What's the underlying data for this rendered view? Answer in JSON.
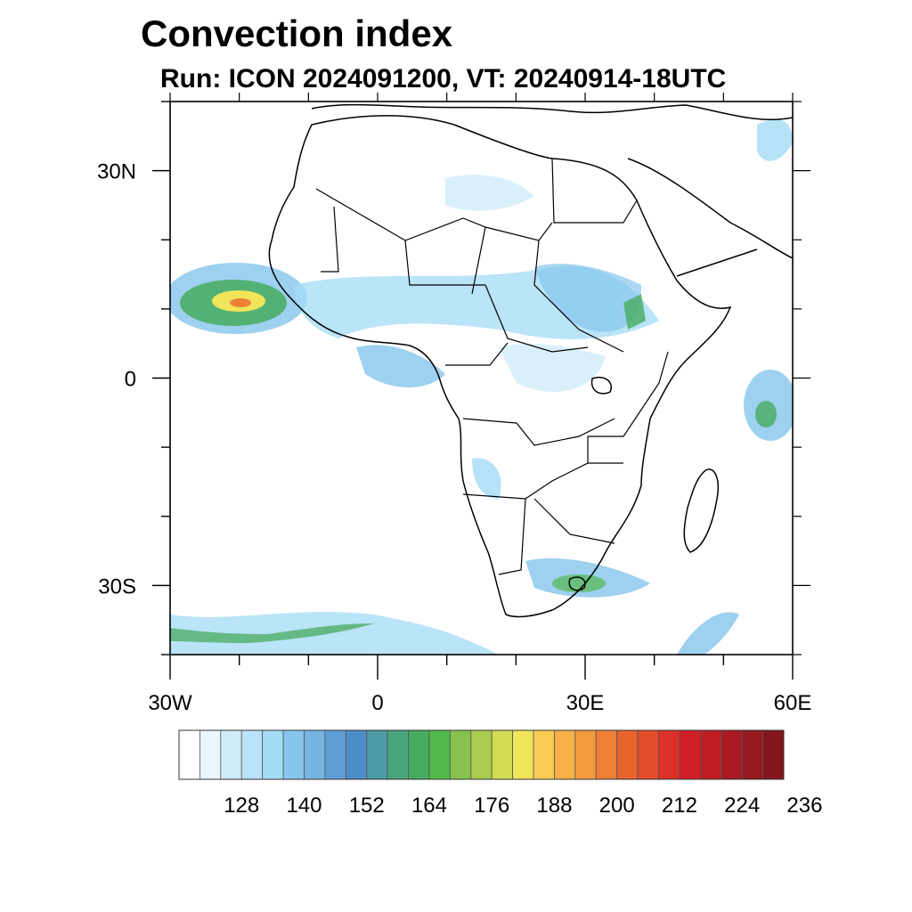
{
  "title": "Convection index",
  "subtitle": "Run: ICON 2024091200,  VT: 20240914-18UTC",
  "map": {
    "region": "Africa",
    "lon_range": [
      -30,
      60
    ],
    "lat_range": [
      -40,
      40
    ],
    "x_tick_labels": [
      {
        "lon": -30,
        "label": "30W"
      },
      {
        "lon": 0,
        "label": "0"
      },
      {
        "lon": 30,
        "label": "30E"
      },
      {
        "lon": 60,
        "label": "60E"
      }
    ],
    "y_tick_labels": [
      {
        "lat": 30,
        "label": "30N"
      },
      {
        "lat": 0,
        "label": "0"
      },
      {
        "lat": -30,
        "label": "30S"
      }
    ]
  },
  "colorbar": {
    "labels": [
      "128",
      "140",
      "152",
      "164",
      "176",
      "188",
      "200",
      "212",
      "224",
      "236"
    ],
    "colors": [
      "#ffffff",
      "#eaf6fd",
      "#cfecfa",
      "#b9e3f8",
      "#a3dbf5",
      "#86c6ec",
      "#76b4e2",
      "#5f9fd6",
      "#4e8ec8",
      "#4a9ba6",
      "#4aa57e",
      "#47ab5f",
      "#52b84c",
      "#86c24d",
      "#a9ce4d",
      "#d2dc55",
      "#f0e55a",
      "#f8cc55",
      "#f7b148",
      "#f39a3e",
      "#ef7f36",
      "#e9632f",
      "#e34b2b",
      "#dc3128",
      "#d01f26",
      "#c01c24",
      "#aa1a22",
      "#961820",
      "#84151c"
    ]
  }
}
